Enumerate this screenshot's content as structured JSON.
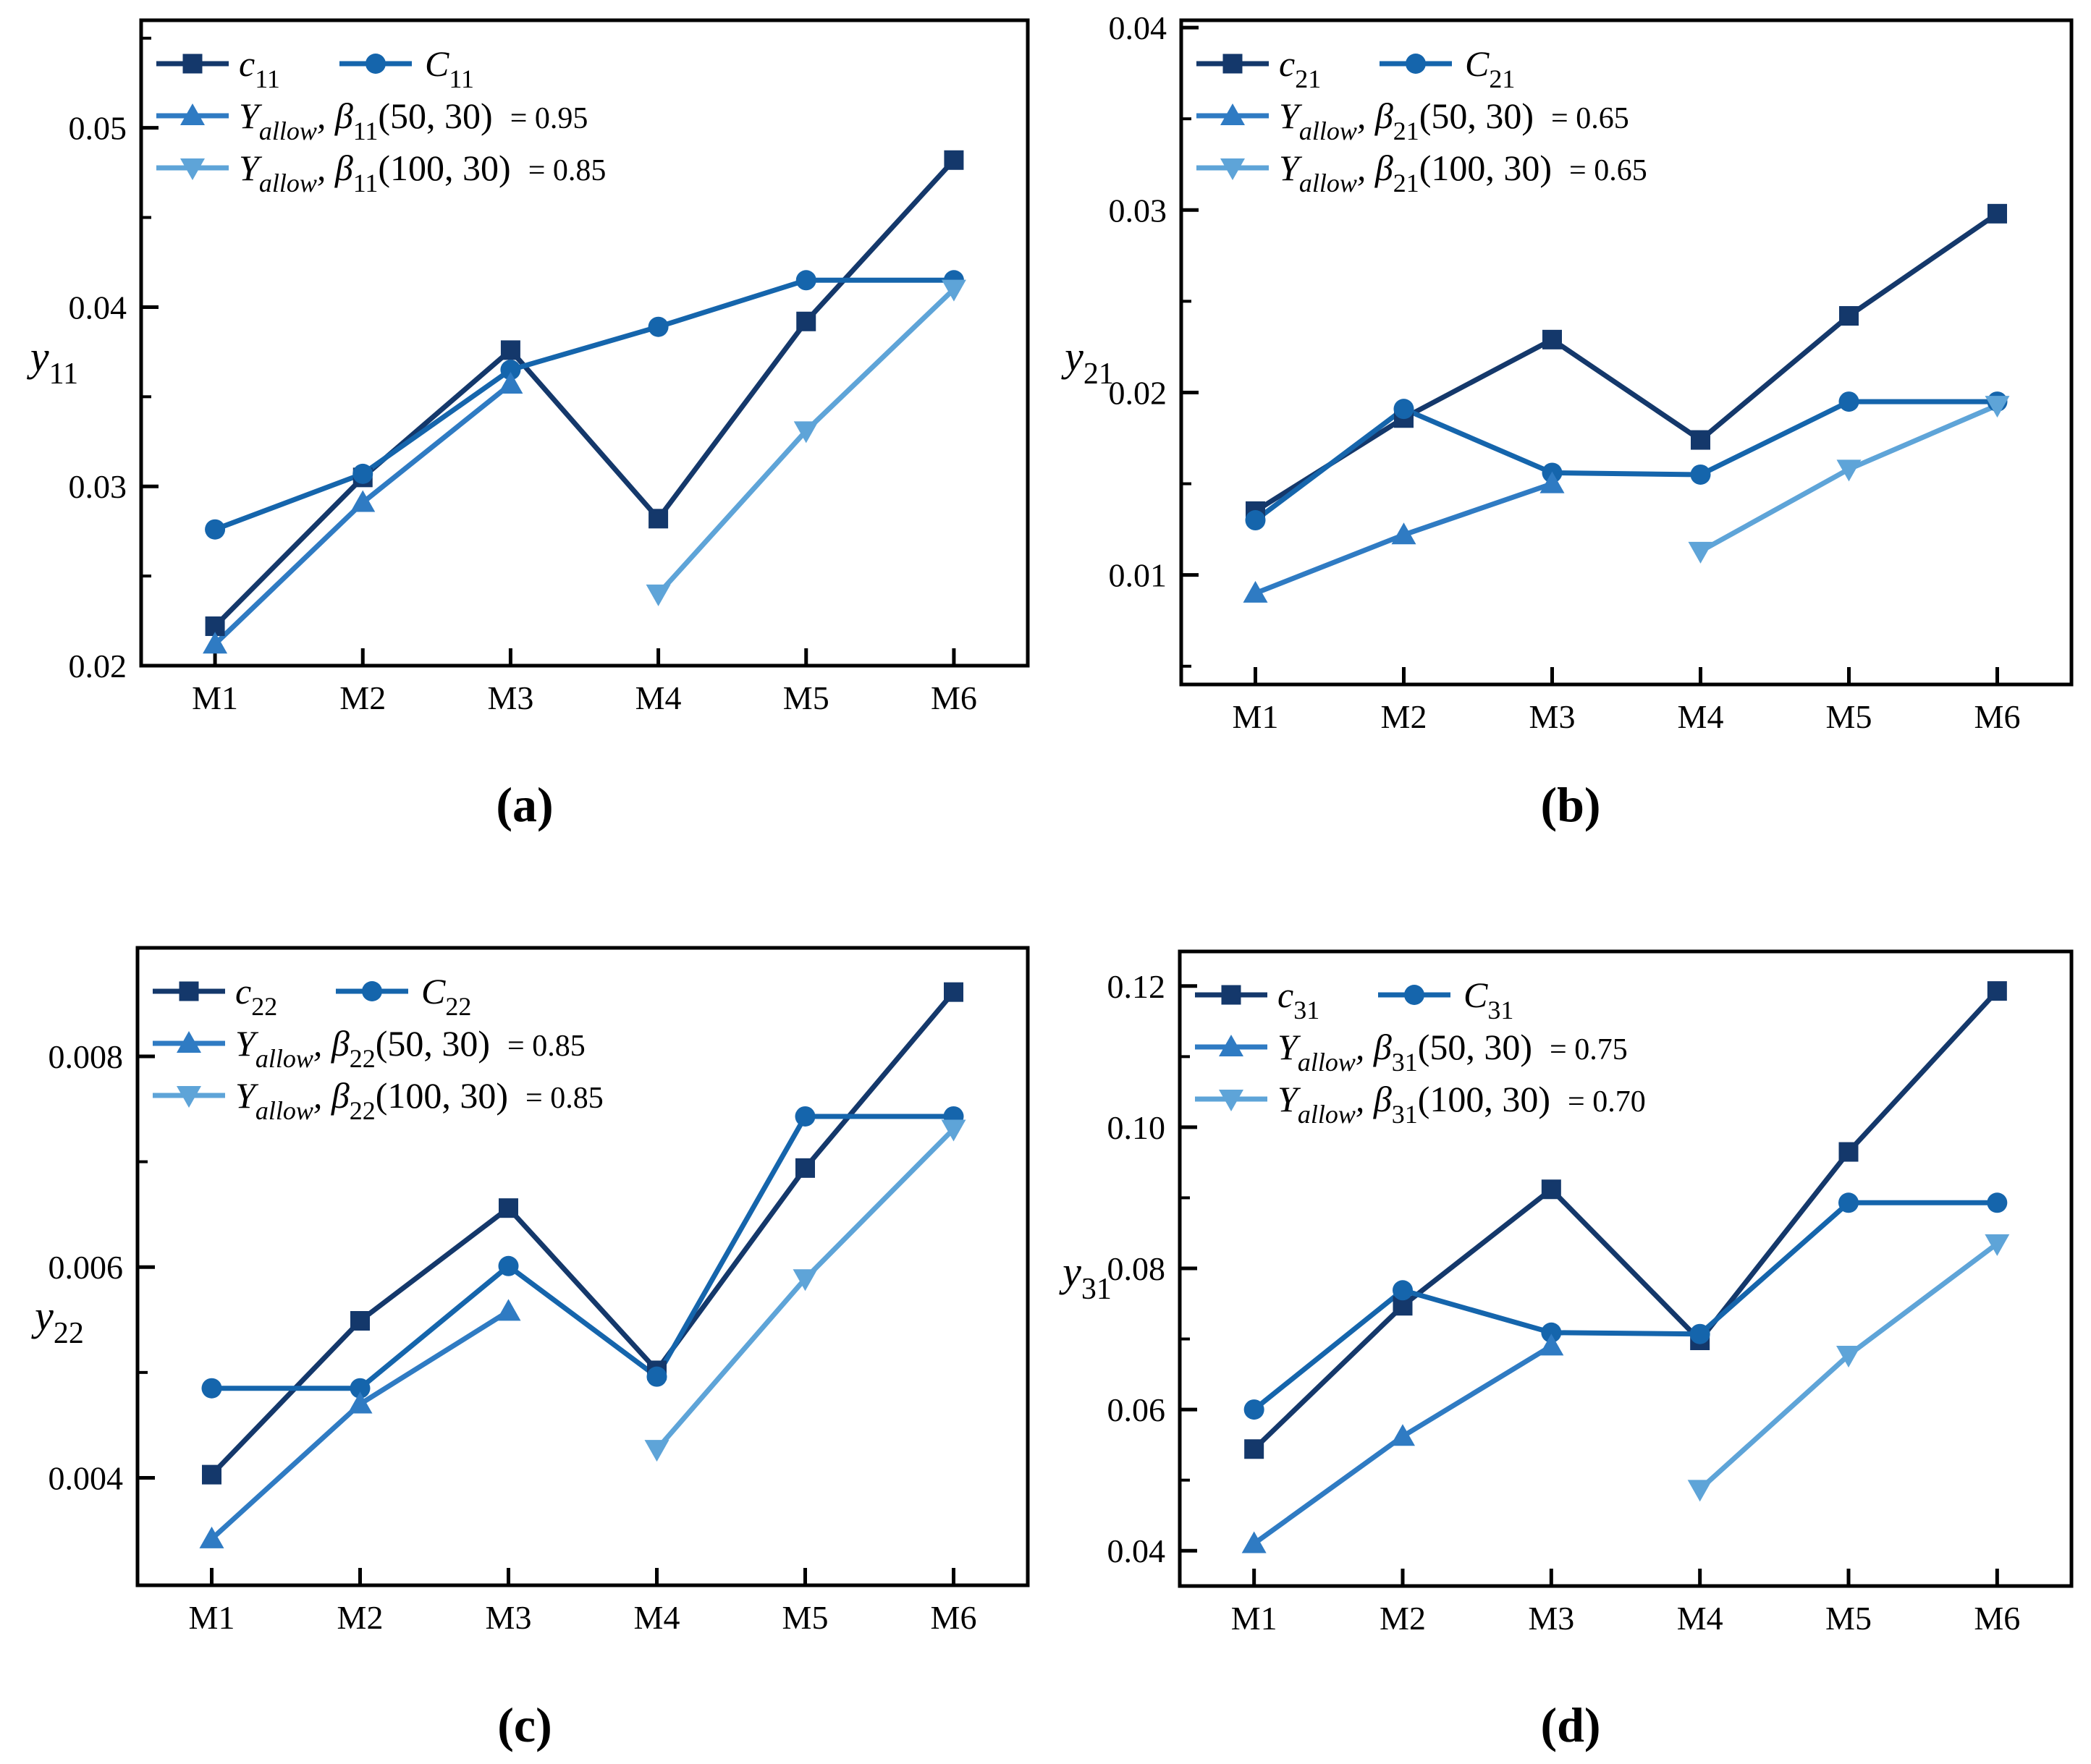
{
  "figure": {
    "background": "#ffffff",
    "axis_color": "#000000",
    "series_colors": {
      "c": "#14386B",
      "C": "#1565AC",
      "beta50": "#2F7BC3",
      "beta100": "#5EA4D8"
    }
  },
  "chart_data": [
    {
      "id": "a",
      "type": "line",
      "caption": "(a)",
      "categories": [
        "M1",
        "M2",
        "M3",
        "M4",
        "M5",
        "M6"
      ],
      "ylim": [
        0.02,
        0.056
      ],
      "yticks": [
        {
          "v": 0.02,
          "label": "0.02"
        },
        {
          "v": 0.03,
          "label": "0.03"
        },
        {
          "v": 0.04,
          "label": "0.04"
        },
        {
          "v": 0.05,
          "label": "0.05"
        }
      ],
      "yminor": [
        0.025,
        0.035,
        0.045,
        0.055
      ],
      "ylabel_parts": [
        {
          "t": "y",
          "it": 1
        },
        {
          "t": "11",
          "sub": 1
        }
      ],
      "legend_position": "top-left",
      "series": [
        {
          "key": "c",
          "marker": "square",
          "x": [
            0,
            1,
            2,
            3,
            4,
            5
          ],
          "values": [
            0.0222,
            0.0305,
            0.0376,
            0.0282,
            0.0392,
            0.0482
          ],
          "label_parts": [
            {
              "t": "c",
              "it": 1
            },
            {
              "t": "11",
              "sub": 1
            }
          ]
        },
        {
          "key": "C",
          "marker": "circle",
          "x": [
            0,
            1,
            2,
            3,
            4,
            5
          ],
          "values": [
            0.0276,
            0.0307,
            0.0365,
            0.0389,
            0.0415,
            0.0415
          ],
          "label_parts": [
            {
              "t": "C",
              "it": 1
            },
            {
              "t": "11",
              "sub": 1
            }
          ]
        },
        {
          "key": "beta50",
          "marker": "triangle-up",
          "x": [
            0,
            1,
            2
          ],
          "values": [
            0.0212,
            0.0291,
            0.0357
          ],
          "label_parts": [
            {
              "t": "Y",
              "it": 1
            },
            {
              "t": "allow",
              "sub": 1,
              "it": 1
            },
            {
              "t": ", ",
              "it": 1
            },
            {
              "t": "β",
              "it": 1
            },
            {
              "t": "11",
              "sub": 1
            },
            {
              "t": "(50, 30)"
            }
          ],
          "eq": "= 0.95"
        },
        {
          "key": "beta100",
          "marker": "triangle-down",
          "x": [
            3,
            4,
            5
          ],
          "values": [
            0.024,
            0.0331,
            0.041
          ],
          "label_parts": [
            {
              "t": "Y",
              "it": 1
            },
            {
              "t": "allow",
              "sub": 1,
              "it": 1
            },
            {
              "t": ", ",
              "it": 1
            },
            {
              "t": "β",
              "it": 1
            },
            {
              "t": "11",
              "sub": 1
            },
            {
              "t": "(100, 30)"
            }
          ],
          "eq": "= 0.85"
        }
      ]
    },
    {
      "id": "b",
      "type": "line",
      "caption": "(b)",
      "categories": [
        "M1",
        "M2",
        "M3",
        "M4",
        "M5",
        "M6"
      ],
      "ylim": [
        0.004,
        0.0404
      ],
      "yticks": [
        {
          "v": 0.01,
          "label": "0.01"
        },
        {
          "v": 0.02,
          "label": "0.02"
        },
        {
          "v": 0.03,
          "label": "0.03"
        },
        {
          "v": 0.04,
          "label": "0.04"
        }
      ],
      "yminor": [
        0.005,
        0.015,
        0.025,
        0.035
      ],
      "ylabel_parts": [
        {
          "t": "y",
          "it": 1
        },
        {
          "t": "21",
          "sub": 1
        }
      ],
      "legend_position": "top-left",
      "series": [
        {
          "key": "c",
          "marker": "square",
          "x": [
            0,
            1,
            2,
            3,
            4,
            5
          ],
          "values": [
            0.0135,
            0.0186,
            0.0229,
            0.0174,
            0.0242,
            0.0298
          ],
          "label_parts": [
            {
              "t": "c",
              "it": 1
            },
            {
              "t": "21",
              "sub": 1
            }
          ]
        },
        {
          "key": "C",
          "marker": "circle",
          "x": [
            0,
            1,
            2,
            3,
            4,
            5
          ],
          "values": [
            0.013,
            0.0191,
            0.0156,
            0.0155,
            0.0195,
            0.0195
          ],
          "label_parts": [
            {
              "t": "C",
              "it": 1
            },
            {
              "t": "21",
              "sub": 1
            }
          ]
        },
        {
          "key": "beta50",
          "marker": "triangle-up",
          "x": [
            0,
            1,
            2
          ],
          "values": [
            0.009,
            0.0122,
            0.015
          ],
          "label_parts": [
            {
              "t": "Y",
              "it": 1
            },
            {
              "t": "allow",
              "sub": 1,
              "it": 1
            },
            {
              "t": ", ",
              "it": 1
            },
            {
              "t": "β",
              "it": 1
            },
            {
              "t": "21",
              "sub": 1
            },
            {
              "t": "(50, 30)"
            }
          ],
          "eq": "= 0.65"
        },
        {
          "key": "beta100",
          "marker": "triangle-down",
          "x": [
            3,
            4,
            5
          ],
          "values": [
            0.0113,
            0.0158,
            0.0193
          ],
          "label_parts": [
            {
              "t": "Y",
              "it": 1
            },
            {
              "t": "allow",
              "sub": 1,
              "it": 1
            },
            {
              "t": ", ",
              "it": 1
            },
            {
              "t": "β",
              "it": 1
            },
            {
              "t": "21",
              "sub": 1
            },
            {
              "t": "(100, 30)"
            }
          ],
          "eq": "= 0.65"
        }
      ]
    },
    {
      "id": "c",
      "type": "line",
      "caption": "(c)",
      "categories": [
        "M1",
        "M2",
        "M3",
        "M4",
        "M5",
        "M6"
      ],
      "ylim": [
        0.00298,
        0.00903
      ],
      "yticks": [
        {
          "v": 0.004,
          "label": "0.004"
        },
        {
          "v": 0.006,
          "label": "0.006"
        },
        {
          "v": 0.008,
          "label": "0.008"
        }
      ],
      "yminor": [
        0.005,
        0.007
      ],
      "ylabel_parts": [
        {
          "t": "y",
          "it": 1
        },
        {
          "t": "22",
          "sub": 1
        }
      ],
      "legend_position": "top-left",
      "series": [
        {
          "key": "c",
          "marker": "square",
          "x": [
            0,
            1,
            2,
            3,
            4,
            5
          ],
          "values": [
            0.00403,
            0.00549,
            0.00656,
            0.00502,
            0.00694,
            0.00861
          ],
          "label_parts": [
            {
              "t": "c",
              "it": 1
            },
            {
              "t": "22",
              "sub": 1
            }
          ]
        },
        {
          "key": "C",
          "marker": "circle",
          "x": [
            0,
            1,
            2,
            3,
            4,
            5
          ],
          "values": [
            0.00485,
            0.00485,
            0.00601,
            0.00496,
            0.00743,
            0.00743
          ],
          "label_parts": [
            {
              "t": "C",
              "it": 1
            },
            {
              "t": "22",
              "sub": 1
            }
          ]
        },
        {
          "key": "beta50",
          "marker": "triangle-up",
          "x": [
            0,
            1,
            2
          ],
          "values": [
            0.00342,
            0.0047,
            0.00558
          ],
          "label_parts": [
            {
              "t": "Y",
              "it": 1
            },
            {
              "t": "allow",
              "sub": 1,
              "it": 1
            },
            {
              "t": ", ",
              "it": 1
            },
            {
              "t": "β",
              "it": 1
            },
            {
              "t": "22",
              "sub": 1
            },
            {
              "t": "(50, 30)"
            }
          ],
          "eq": "= 0.85"
        },
        {
          "key": "beta100",
          "marker": "triangle-down",
          "x": [
            3,
            4,
            5
          ],
          "values": [
            0.00427,
            0.00589,
            0.00731
          ],
          "label_parts": [
            {
              "t": "Y",
              "it": 1
            },
            {
              "t": "allow",
              "sub": 1,
              "it": 1
            },
            {
              "t": ", ",
              "it": 1
            },
            {
              "t": "β",
              "it": 1
            },
            {
              "t": "22",
              "sub": 1
            },
            {
              "t": "(100, 30)"
            }
          ],
          "eq": "= 0.85"
        }
      ]
    },
    {
      "id": "d",
      "type": "line",
      "caption": "(d)",
      "categories": [
        "M1",
        "M2",
        "M3",
        "M4",
        "M5",
        "M6"
      ],
      "ylim": [
        0.035,
        0.1249
      ],
      "yticks": [
        {
          "v": 0.04,
          "label": "0.04"
        },
        {
          "v": 0.06,
          "label": "0.06"
        },
        {
          "v": 0.08,
          "label": "0.08"
        },
        {
          "v": 0.1,
          "label": "0.10"
        },
        {
          "v": 0.12,
          "label": "0.12"
        }
      ],
      "yminor": [
        0.05,
        0.07,
        0.09,
        0.11
      ],
      "ylabel_parts": [
        {
          "t": "y",
          "it": 1
        },
        {
          "t": "31",
          "sub": 1
        }
      ],
      "legend_position": "top-left",
      "series": [
        {
          "key": "c",
          "marker": "square",
          "x": [
            0,
            1,
            2,
            3,
            4,
            5
          ],
          "values": [
            0.0544,
            0.0747,
            0.0912,
            0.0698,
            0.0965,
            0.1193
          ],
          "label_parts": [
            {
              "t": "c",
              "it": 1
            },
            {
              "t": "31",
              "sub": 1
            }
          ]
        },
        {
          "key": "C",
          "marker": "circle",
          "x": [
            0,
            1,
            2,
            3,
            4,
            5
          ],
          "values": [
            0.06,
            0.0769,
            0.0709,
            0.0707,
            0.0893,
            0.0893
          ],
          "label_parts": [
            {
              "t": "C",
              "it": 1
            },
            {
              "t": "31",
              "sub": 1
            }
          ]
        },
        {
          "key": "beta50",
          "marker": "triangle-up",
          "x": [
            0,
            1,
            2
          ],
          "values": [
            0.041,
            0.0562,
            0.069
          ],
          "label_parts": [
            {
              "t": "Y",
              "it": 1
            },
            {
              "t": "allow",
              "sub": 1,
              "it": 1
            },
            {
              "t": ", ",
              "it": 1
            },
            {
              "t": "β",
              "it": 1
            },
            {
              "t": "31",
              "sub": 1
            },
            {
              "t": "(50, 30)"
            }
          ],
          "eq": "= 0.75"
        },
        {
          "key": "beta100",
          "marker": "triangle-down",
          "x": [
            3,
            4,
            5
          ],
          "values": [
            0.0487,
            0.0677,
            0.0835
          ],
          "label_parts": [
            {
              "t": "Y",
              "it": 1
            },
            {
              "t": "allow",
              "sub": 1,
              "it": 1
            },
            {
              "t": ", ",
              "it": 1
            },
            {
              "t": "β",
              "it": 1
            },
            {
              "t": "31",
              "sub": 1
            },
            {
              "t": "(100, 30)"
            }
          ],
          "eq": "= 0.70"
        }
      ]
    }
  ]
}
